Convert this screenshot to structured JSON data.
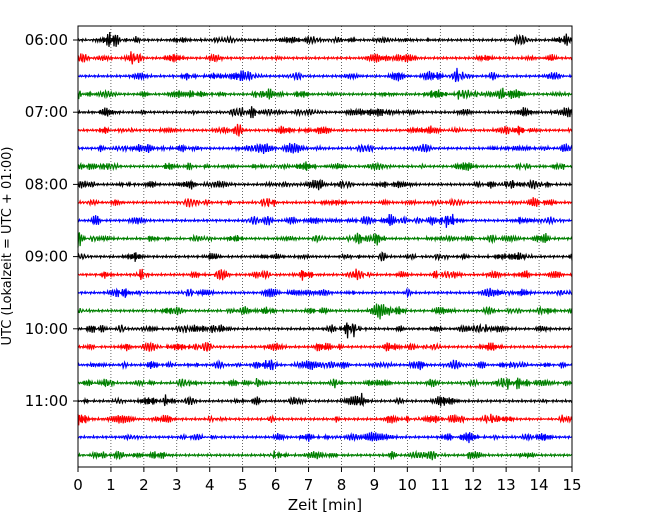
{
  "chart_data": {
    "type": "line",
    "title": "",
    "xlabel": "Zeit  [min]",
    "ylabel": "UTC (Lokalzeit = UTC + 01:00)",
    "xlim": [
      0,
      15
    ],
    "x_ticks": [
      "0",
      "1",
      "2",
      "3",
      "4",
      "5",
      "6",
      "7",
      "8",
      "9",
      "10",
      "11",
      "12",
      "13",
      "14",
      "15"
    ],
    "y_ticks": [
      "06:00",
      "07:00",
      "08:00",
      "09:00",
      "10:00",
      "11:00"
    ],
    "grid": "vertical dotted at each minute",
    "trace_minutes": 15,
    "trace_colors": [
      "#000000",
      "#ff0000",
      "#0000ff",
      "#008000"
    ],
    "series": [
      {
        "start": "06:00"
      },
      {
        "start": "06:15"
      },
      {
        "start": "06:30"
      },
      {
        "start": "06:45"
      },
      {
        "start": "07:00"
      },
      {
        "start": "07:15"
      },
      {
        "start": "07:30"
      },
      {
        "start": "07:45"
      },
      {
        "start": "08:00"
      },
      {
        "start": "08:15"
      },
      {
        "start": "08:30"
      },
      {
        "start": "08:45"
      },
      {
        "start": "09:00"
      },
      {
        "start": "09:15"
      },
      {
        "start": "09:30"
      },
      {
        "start": "09:45"
      },
      {
        "start": "10:00"
      },
      {
        "start": "10:15"
      },
      {
        "start": "10:30"
      },
      {
        "start": "10:45"
      },
      {
        "start": "11:00"
      },
      {
        "start": "11:15"
      },
      {
        "start": "11:30"
      },
      {
        "start": "11:45"
      }
    ]
  }
}
